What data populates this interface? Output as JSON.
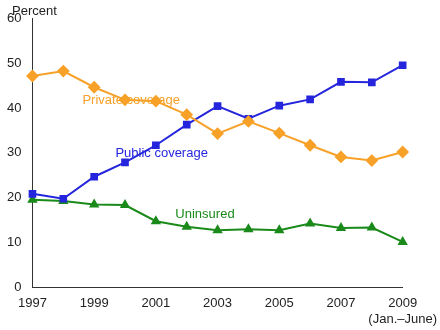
{
  "chart_data": {
    "type": "line",
    "y_label": "Percent",
    "categories": [
      "1997",
      null,
      "1999",
      null,
      "2001",
      null,
      "2003",
      null,
      "2005",
      null,
      "2007",
      null,
      "2009\n(Jan.–June)"
    ],
    "series": [
      {
        "name": "Private coverage",
        "color": "#f7a128",
        "marker": "diamond",
        "line_style": "solid",
        "values": [
          47.1,
          48.2,
          44.6,
          41.8,
          41.5,
          38.5,
          34.3,
          37.0,
          34.4,
          31.7,
          29.1,
          28.3,
          30.2
        ]
      },
      {
        "name": "Public coverage",
        "color": "#2525dd",
        "marker": "square",
        "line_style": "solid",
        "values": [
          20.9,
          19.8,
          24.7,
          27.9,
          31.7,
          36.3,
          40.4,
          37.6,
          40.5,
          41.9,
          45.8,
          45.7,
          49.5
        ]
      },
      {
        "name": "Uninsured",
        "color": "#1a8a1a",
        "marker": "triangle",
        "line_style": "solid",
        "values": [
          19.6,
          19.3,
          18.5,
          18.4,
          14.8,
          13.6,
          12.8,
          13.0,
          12.8,
          14.3,
          13.3,
          13.4,
          10.2
        ]
      }
    ],
    "ylim": [
      0,
      60
    ],
    "yticks": [
      0,
      10,
      20,
      30,
      40,
      50,
      60
    ],
    "grid": false
  }
}
